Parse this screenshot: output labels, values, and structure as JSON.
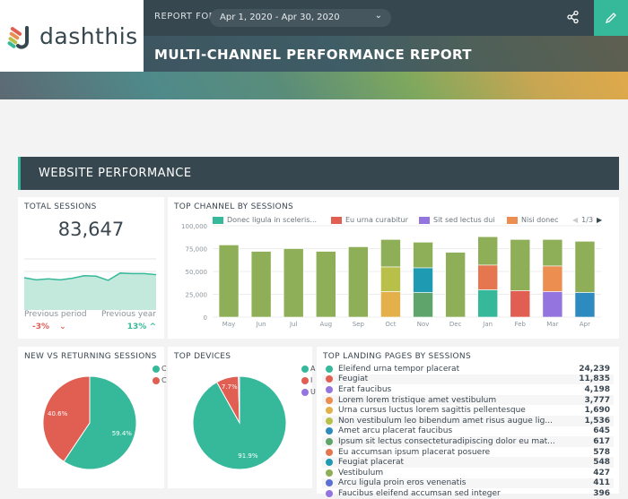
{
  "logo": {
    "text": "dashthis"
  },
  "header": {
    "report_for": "REPORT FOR",
    "date_range": "Apr 1, 2020 - Apr 30, 2020",
    "title": "MULTI-CHANNEL PERFORMANCE REPORT"
  },
  "section": {
    "title": "WEBSITE PERFORMANCE"
  },
  "total_sessions": {
    "title": "TOTAL SESSIONS",
    "value": "83,647",
    "prev_period_label": "Previous period",
    "prev_period_value": "-3%",
    "prev_year_label": "Previous year",
    "prev_year_value": "13%",
    "sparkline": [
      62,
      58,
      60,
      58,
      61,
      66,
      65,
      57,
      71,
      70,
      70,
      68
    ]
  },
  "chart_data": [
    {
      "type": "bar",
      "title": "TOP CHANNEL BY SESSIONS",
      "stacked": true,
      "categories": [
        "May",
        "Jun",
        "Jul",
        "Aug",
        "Sep",
        "Oct",
        "Nov",
        "Dec",
        "Jan",
        "Feb",
        "Mar",
        "Apr"
      ],
      "ylim": [
        0,
        100000
      ],
      "yticks": [
        "100,000",
        "75,000",
        "50,000",
        "25,000",
        "0"
      ],
      "grid": true,
      "legend": {
        "position": "top",
        "page": "1/3",
        "items": [
          {
            "name": "Donec ligula in sceleris...",
            "color": "#36b99a"
          },
          {
            "name": "Eu urna curabitur",
            "color": "#e15e53"
          },
          {
            "name": "Sit sed lectus dui",
            "color": "#9474de"
          },
          {
            "name": "Nisi donec",
            "color": "#ec8e4f"
          }
        ]
      },
      "stacks": [
        [
          {
            "v": 79000,
            "c": "#8fae58"
          }
        ],
        [
          {
            "v": 72000,
            "c": "#8fae58"
          }
        ],
        [
          {
            "v": 75000,
            "c": "#8fae58"
          }
        ],
        [
          {
            "v": 72000,
            "c": "#8fae58"
          }
        ],
        [
          {
            "v": 77000,
            "c": "#8fae58"
          }
        ],
        [
          {
            "v": 28000,
            "c": "#e3b04b"
          },
          {
            "v": 27000,
            "c": "#b9c04a"
          },
          {
            "v": 30000,
            "c": "#8fae58"
          }
        ],
        [
          {
            "v": 27000,
            "c": "#5fa46a"
          },
          {
            "v": 27000,
            "c": "#1e9bb3"
          },
          {
            "v": 28000,
            "c": "#8fae58"
          }
        ],
        [
          {
            "v": 71000,
            "c": "#8fae58"
          }
        ],
        [
          {
            "v": 30000,
            "c": "#36b99a"
          },
          {
            "v": 27000,
            "c": "#e6764f"
          },
          {
            "v": 31000,
            "c": "#8fae58"
          }
        ],
        [
          {
            "v": 29000,
            "c": "#e15e53"
          },
          {
            "v": 56000,
            "c": "#8fae58"
          }
        ],
        [
          {
            "v": 28000,
            "c": "#9474de"
          },
          {
            "v": 28000,
            "c": "#ec8e4f"
          },
          {
            "v": 29000,
            "c": "#8fae58"
          }
        ],
        [
          {
            "v": 27000,
            "c": "#2e8bc0"
          },
          {
            "v": 56000,
            "c": "#8fae58"
          }
        ]
      ]
    },
    {
      "type": "pie",
      "title": "NEW VS RETURNING SESSIONS",
      "slices": [
        {
          "label": "59.4%",
          "value": 59.4,
          "color": "#36b99a",
          "legend": "C"
        },
        {
          "label": "40.6%",
          "value": 40.6,
          "color": "#e15e53",
          "legend": "C"
        }
      ]
    },
    {
      "type": "pie",
      "title": "TOP DEVICES",
      "slices": [
        {
          "label": "91.9%",
          "value": 91.9,
          "color": "#36b99a",
          "legend": "A"
        },
        {
          "label": "7.7%",
          "value": 7.7,
          "color": "#e15e53",
          "legend": "I"
        },
        {
          "label": "",
          "value": 0.4,
          "color": "#9474de",
          "legend": "U"
        }
      ]
    }
  ],
  "landing": {
    "title": "TOP LANDING PAGES BY SESSIONS",
    "rows": [
      {
        "name": "Eleifend urna tempor placerat",
        "value": "24,239",
        "color": "#36b99a"
      },
      {
        "name": "Feugiat",
        "value": "11,835",
        "color": "#e15e53"
      },
      {
        "name": "Erat faucibus",
        "value": "4,198",
        "color": "#9474de"
      },
      {
        "name": "Lorem lorem tristique amet vestibulum",
        "value": "3,777",
        "color": "#ec8e4f"
      },
      {
        "name": "Urna cursus luctus lorem sagittis pellentesque",
        "value": "1,690",
        "color": "#e3b04b"
      },
      {
        "name": "Non vestibulum leo bibendum amet risus augue lig...",
        "value": "1,536",
        "color": "#b9c04a"
      },
      {
        "name": "Amet arcu placerat faucibus",
        "value": "645",
        "color": "#2e8bc0"
      },
      {
        "name": "Ipsum sit lectus consecteturadipiscing dolor eu mat...",
        "value": "617",
        "color": "#5fa46a"
      },
      {
        "name": "Eu accumsan ipsum placerat posuere",
        "value": "578",
        "color": "#e6764f"
      },
      {
        "name": "Feugiat placerat",
        "value": "548",
        "color": "#1e9bb3"
      },
      {
        "name": "Vestibulum",
        "value": "427",
        "color": "#8fae58"
      },
      {
        "name": "Arcu ligula proin eros venenatis",
        "value": "411",
        "color": "#5b6fd6"
      },
      {
        "name": "Faucibus eleifend accumsan sed integer",
        "value": "396",
        "color": "#9474de"
      }
    ]
  }
}
